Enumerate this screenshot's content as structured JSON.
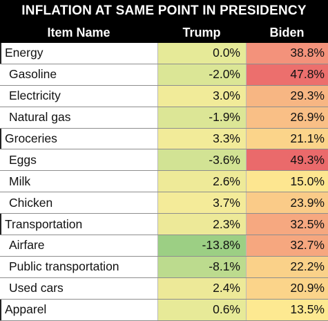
{
  "title": "INFLATION AT SAME POINT IN PRESIDENCY",
  "columns": {
    "name": "Item Name",
    "trump": "Trump",
    "biden": "Biden"
  },
  "rows": [
    {
      "name": "Energy",
      "level": "category",
      "trump": "0.0%",
      "biden": "38.8%",
      "trump_color": "#e6ea98",
      "biden_color": "#f3927b"
    },
    {
      "name": "Gasoline",
      "level": "item",
      "trump": "-2.0%",
      "biden": "47.8%",
      "trump_color": "#dbe696",
      "biden_color": "#ec6f6d"
    },
    {
      "name": "Electricity",
      "level": "item",
      "trump": "3.0%",
      "biden": "29.3%",
      "trump_color": "#f1eb99",
      "biden_color": "#f7b683"
    },
    {
      "name": "Natural gas",
      "level": "item",
      "trump": "-1.9%",
      "biden": "26.9%",
      "trump_color": "#dce696",
      "biden_color": "#f9bf86"
    },
    {
      "name": "Groceries",
      "level": "category",
      "trump": "3.3%",
      "biden": "21.1%",
      "trump_color": "#f2eb99",
      "biden_color": "#fbd48a"
    },
    {
      "name": "Eggs",
      "level": "item",
      "trump": "-3.6%",
      "biden": "49.3%",
      "trump_color": "#d2e394",
      "biden_color": "#ea6a6b"
    },
    {
      "name": "Milk",
      "level": "item",
      "trump": "2.6%",
      "biden": "15.0%",
      "trump_color": "#eeea98",
      "biden_color": "#fde690"
    },
    {
      "name": "Chicken",
      "level": "item",
      "trump": "3.7%",
      "biden": "23.9%",
      "trump_color": "#f4eb99",
      "biden_color": "#facb88"
    },
    {
      "name": "Transportation",
      "level": "category",
      "trump": "2.3%",
      "biden": "32.5%",
      "trump_color": "#ede998",
      "biden_color": "#f6a880"
    },
    {
      "name": "Airfare",
      "level": "item",
      "trump": "-13.8%",
      "biden": "32.7%",
      "trump_color": "#9ccf84",
      "biden_color": "#f6a77f"
    },
    {
      "name": "Public transportation",
      "level": "item",
      "trump": "-8.1%",
      "biden": "22.2%",
      "trump_color": "#bcdb8e",
      "biden_color": "#fad189"
    },
    {
      "name": "Used cars",
      "level": "item",
      "trump": "2.4%",
      "biden": "20.9%",
      "trump_color": "#ede998",
      "biden_color": "#fbd48a"
    },
    {
      "name": "Apparel",
      "level": "category",
      "trump": "0.6%",
      "biden": "13.5%",
      "trump_color": "#e7ea98",
      "biden_color": "#fde991"
    }
  ]
}
